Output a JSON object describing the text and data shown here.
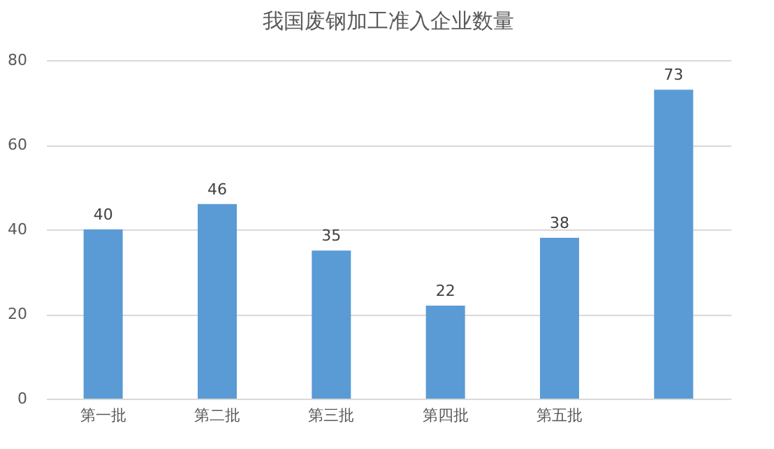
{
  "chart_data": {
    "type": "bar",
    "title": "我国废钢加工准入企业数量",
    "categories": [
      "第一批",
      "第二批",
      "第三批",
      "第四批",
      "第五批",
      null
    ],
    "values": [
      40,
      46,
      35,
      22,
      38,
      73
    ],
    "color": "#5b9bd5",
    "ylim": [
      0,
      80
    ],
    "yticks": [
      0,
      20,
      40,
      60,
      80
    ],
    "grid": "y",
    "data_labels": true
  }
}
